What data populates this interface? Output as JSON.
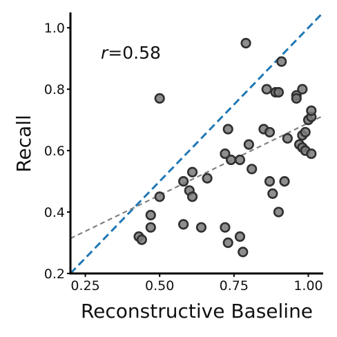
{
  "chart_data": {
    "type": "scatter",
    "title": "",
    "xlabel": "Reconstructive Baseline",
    "ylabel": "Recall",
    "xlim": [
      0.2,
      1.05
    ],
    "ylim": [
      0.2,
      1.05
    ],
    "xticks": [
      "0.25",
      "0.50",
      "0.75",
      "1.00"
    ],
    "yticks": [
      "0.2",
      "0.4",
      "0.6",
      "0.8",
      "1.0"
    ],
    "annotation_r": "r",
    "annotation_value": "=0.58",
    "grid": false,
    "legend": "none",
    "point_color": "#7a7a7a",
    "point_edge_color": "#2f2f2f",
    "identity_line_color": "#1f77b4",
    "fit_line_color": "#7f7f7f",
    "fit_line": {
      "intercept": 0.22,
      "slope": 0.47
    },
    "points": [
      {
        "x": 0.43,
        "y": 0.32
      },
      {
        "x": 0.44,
        "y": 0.31
      },
      {
        "x": 0.47,
        "y": 0.35
      },
      {
        "x": 0.47,
        "y": 0.39
      },
      {
        "x": 0.5,
        "y": 0.45
      },
      {
        "x": 0.5,
        "y": 0.77
      },
      {
        "x": 0.58,
        "y": 0.36
      },
      {
        "x": 0.58,
        "y": 0.5
      },
      {
        "x": 0.6,
        "y": 0.47
      },
      {
        "x": 0.61,
        "y": 0.45
      },
      {
        "x": 0.61,
        "y": 0.53
      },
      {
        "x": 0.64,
        "y": 0.35
      },
      {
        "x": 0.66,
        "y": 0.51
      },
      {
        "x": 0.72,
        "y": 0.35
      },
      {
        "x": 0.72,
        "y": 0.59
      },
      {
        "x": 0.73,
        "y": 0.3
      },
      {
        "x": 0.73,
        "y": 0.67
      },
      {
        "x": 0.74,
        "y": 0.57
      },
      {
        "x": 0.77,
        "y": 0.32
      },
      {
        "x": 0.77,
        "y": 0.57
      },
      {
        "x": 0.78,
        "y": 0.27
      },
      {
        "x": 0.79,
        "y": 0.95
      },
      {
        "x": 0.8,
        "y": 0.62
      },
      {
        "x": 0.81,
        "y": 0.54
      },
      {
        "x": 0.85,
        "y": 0.67
      },
      {
        "x": 0.86,
        "y": 0.8
      },
      {
        "x": 0.87,
        "y": 0.5
      },
      {
        "x": 0.87,
        "y": 0.66
      },
      {
        "x": 0.88,
        "y": 0.46
      },
      {
        "x": 0.89,
        "y": 0.79
      },
      {
        "x": 0.9,
        "y": 0.79
      },
      {
        "x": 0.9,
        "y": 0.4
      },
      {
        "x": 0.91,
        "y": 0.89
      },
      {
        "x": 0.92,
        "y": 0.5
      },
      {
        "x": 0.93,
        "y": 0.64
      },
      {
        "x": 0.96,
        "y": 0.78
      },
      {
        "x": 0.96,
        "y": 0.77
      },
      {
        "x": 0.97,
        "y": 0.62
      },
      {
        "x": 0.98,
        "y": 0.8
      },
      {
        "x": 0.98,
        "y": 0.65
      },
      {
        "x": 0.98,
        "y": 0.61
      },
      {
        "x": 0.99,
        "y": 0.66
      },
      {
        "x": 0.99,
        "y": 0.6
      },
      {
        "x": 1.0,
        "y": 0.7
      },
      {
        "x": 1.01,
        "y": 0.71
      },
      {
        "x": 1.01,
        "y": 0.73
      },
      {
        "x": 1.01,
        "y": 0.59
      }
    ]
  }
}
